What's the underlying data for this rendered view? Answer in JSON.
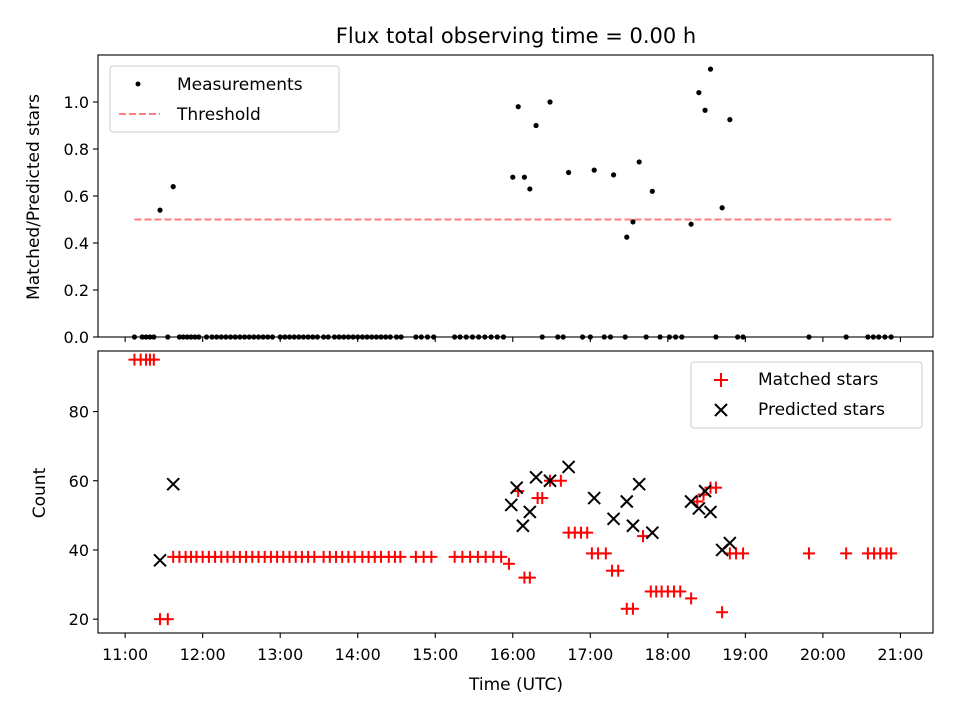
{
  "title": "Flux total observing time = 0.00 h",
  "colors": {
    "matched": "#ff0000",
    "predicted": "#000000",
    "threshold": "#ff7f7f",
    "measure": "#000000"
  },
  "chart_data": [
    {
      "type": "scatter",
      "panel": "top",
      "title": "Flux total observing time = 0.00 h",
      "xlabel": "",
      "ylabel": "Matched/Predicted stars",
      "xlim": [
        10.65,
        21.42
      ],
      "ylim": [
        0,
        1.2
      ],
      "yticks": [
        0.0,
        0.2,
        0.4,
        0.6,
        0.8,
        1.0
      ],
      "ytick_labels": [
        "0.0",
        "0.2",
        "0.4",
        "0.6",
        "0.8",
        "1.0"
      ],
      "legend_position": "top-left",
      "legend": [
        "Measurements",
        "Threshold"
      ],
      "threshold": {
        "name": "Threshold",
        "y": 0.5,
        "x_start": 11.12,
        "x_end": 20.88
      },
      "series": [
        {
          "name": "Measurements",
          "x": [
            11.45,
            11.62,
            16.0,
            16.07,
            16.15,
            16.22,
            16.3,
            16.48,
            16.72,
            17.05,
            17.3,
            17.47,
            17.55,
            17.63,
            17.8,
            18.3,
            18.4,
            18.48,
            18.55,
            18.7,
            18.8,
            11.12,
            11.22,
            11.27,
            11.32,
            11.37,
            11.55,
            11.7,
            11.75,
            11.8,
            11.85,
            11.9,
            11.95,
            12.05,
            12.12,
            12.18,
            12.24,
            12.3,
            12.36,
            12.42,
            12.48,
            12.54,
            12.6,
            12.66,
            12.72,
            12.78,
            12.84,
            12.9,
            13.0,
            13.06,
            13.12,
            13.18,
            13.24,
            13.3,
            13.36,
            13.42,
            13.48,
            13.56,
            13.62,
            13.7,
            13.76,
            13.82,
            13.88,
            13.94,
            14.0,
            14.06,
            14.12,
            14.18,
            14.24,
            14.3,
            14.36,
            14.42,
            14.5,
            14.56,
            14.75,
            14.82,
            14.9,
            14.98,
            15.25,
            15.32,
            15.4,
            15.48,
            15.56,
            15.64,
            15.72,
            15.8,
            15.88,
            16.38,
            16.58,
            16.65,
            16.9,
            17.0,
            17.18,
            17.26,
            17.45,
            17.72,
            17.9,
            18.02,
            18.1,
            18.18,
            18.62,
            18.9,
            18.97,
            19.82,
            20.3,
            20.58,
            20.65,
            20.72,
            20.8,
            20.88
          ],
          "y": [
            0.54,
            0.64,
            0.68,
            0.98,
            0.68,
            0.63,
            0.9,
            1.0,
            0.7,
            0.71,
            0.69,
            0.425,
            0.49,
            0.745,
            0.62,
            0.48,
            1.04,
            0.965,
            1.14,
            0.55,
            0.925,
            0,
            0,
            0,
            0,
            0,
            0,
            0,
            0,
            0,
            0,
            0,
            0,
            0,
            0,
            0,
            0,
            0,
            0,
            0,
            0,
            0,
            0,
            0,
            0,
            0,
            0,
            0,
            0,
            0,
            0,
            0,
            0,
            0,
            0,
            0,
            0,
            0,
            0,
            0,
            0,
            0,
            0,
            0,
            0,
            0,
            0,
            0,
            0,
            0,
            0,
            0,
            0,
            0,
            0,
            0,
            0,
            0,
            0,
            0,
            0,
            0,
            0,
            0,
            0,
            0,
            0,
            0,
            0,
            0,
            0,
            0,
            0,
            0,
            0,
            0,
            0,
            0,
            0,
            0,
            0,
            0,
            0,
            0,
            0,
            0,
            0,
            0,
            0,
            0
          ]
        }
      ]
    },
    {
      "type": "scatter",
      "panel": "bottom",
      "title": "",
      "xlabel": "Time (UTC)",
      "ylabel": "Count",
      "xlim": [
        10.65,
        21.42
      ],
      "ylim": [
        16,
        97.5
      ],
      "yticks": [
        20,
        40,
        60,
        80
      ],
      "ytick_labels": [
        "20",
        "40",
        "60",
        "80"
      ],
      "xticks": [
        11,
        12,
        13,
        14,
        15,
        16,
        17,
        18,
        19,
        20,
        21
      ],
      "xtick_labels": [
        "11:00",
        "12:00",
        "13:00",
        "14:00",
        "15:00",
        "16:00",
        "17:00",
        "18:00",
        "19:00",
        "20:00",
        "21:00"
      ],
      "legend_position": "top-right",
      "legend": [
        "Matched stars",
        "Predicted stars"
      ],
      "series": [
        {
          "name": "Matched stars",
          "x": [
            11.12,
            11.2,
            11.27,
            11.32,
            11.37,
            11.45,
            11.55,
            11.62,
            11.7,
            11.78,
            11.85,
            11.92,
            12.0,
            12.08,
            12.16,
            12.24,
            12.32,
            12.4,
            12.48,
            12.56,
            12.64,
            12.72,
            12.8,
            12.88,
            12.96,
            13.04,
            13.12,
            13.2,
            13.28,
            13.36,
            13.44,
            13.56,
            13.64,
            13.72,
            13.8,
            13.88,
            13.96,
            14.06,
            14.14,
            14.22,
            14.3,
            14.4,
            14.48,
            14.55,
            14.75,
            14.85,
            14.95,
            15.25,
            15.35,
            15.45,
            15.55,
            15.65,
            15.75,
            15.85,
            15.95,
            16.07,
            16.15,
            16.22,
            16.32,
            16.38,
            16.48,
            16.62,
            16.72,
            16.8,
            16.88,
            16.96,
            17.02,
            17.1,
            17.2,
            17.28,
            17.36,
            17.47,
            17.55,
            17.68,
            17.78,
            17.85,
            17.92,
            18.0,
            18.08,
            18.16,
            18.3,
            18.38,
            18.46,
            18.55,
            18.62,
            18.7,
            18.8,
            18.88,
            18.97,
            19.82,
            20.3,
            20.58,
            20.66,
            20.74,
            20.82,
            20.88
          ],
          "y": [
            95,
            95,
            95,
            95,
            95,
            20,
            20,
            38,
            38,
            38,
            38,
            38,
            38,
            38,
            38,
            38,
            38,
            38,
            38,
            38,
            38,
            38,
            38,
            38,
            38,
            38,
            38,
            38,
            38,
            38,
            38,
            38,
            38,
            38,
            38,
            38,
            38,
            38,
            38,
            38,
            38,
            38,
            38,
            38,
            38,
            38,
            38,
            38,
            38,
            38,
            38,
            38,
            38,
            38,
            36,
            57,
            32,
            32,
            55,
            55,
            60,
            60,
            45,
            45,
            45,
            45,
            39,
            39,
            39,
            34,
            34,
            23,
            23,
            44,
            28,
            28,
            28,
            28,
            28,
            28,
            26,
            54,
            56,
            58,
            58,
            22,
            39,
            39,
            39,
            39,
            39,
            39,
            39,
            39,
            39,
            39
          ]
        },
        {
          "name": "Predicted stars",
          "x": [
            11.45,
            11.62,
            15.98,
            16.05,
            16.13,
            16.22,
            16.3,
            16.48,
            16.72,
            17.05,
            17.3,
            17.47,
            17.55,
            17.63,
            17.8,
            18.3,
            18.4,
            18.48,
            18.55,
            18.7,
            18.8
          ],
          "y": [
            37,
            59,
            53,
            58,
            47,
            51,
            61,
            60,
            64,
            55,
            49,
            54,
            47,
            59,
            45,
            54,
            52,
            57,
            51,
            40,
            42
          ]
        }
      ]
    }
  ]
}
